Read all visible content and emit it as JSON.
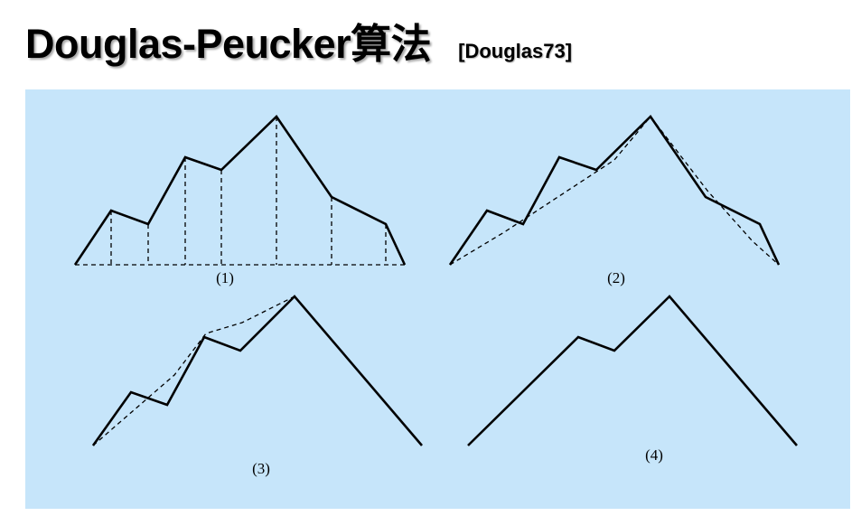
{
  "slide": {
    "title": "Douglas-Peucker算法",
    "citation": "[Douglas73]"
  },
  "panels": [
    {
      "label": "(1)"
    },
    {
      "label": "(2)"
    },
    {
      "label": "(3)"
    },
    {
      "label": "(4)"
    }
  ],
  "colors": {
    "panel_background": "#c6e5fa",
    "line": "#000000"
  }
}
